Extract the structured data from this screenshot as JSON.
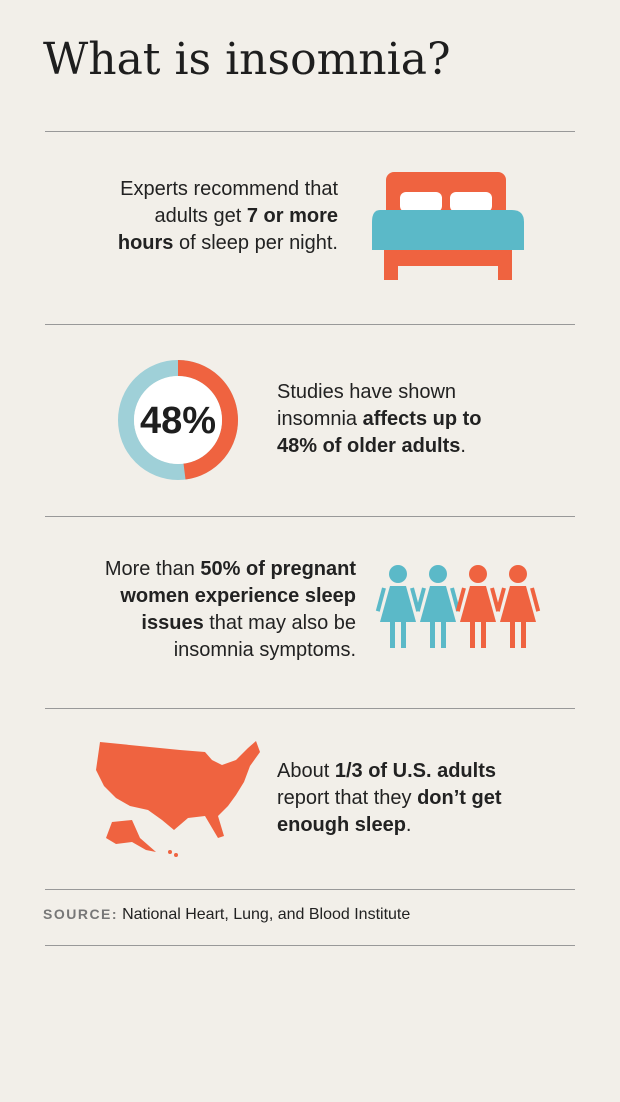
{
  "title": "What is insomnia?",
  "sections": [
    {
      "lines": [
        [
          {
            "text": "Experts recommend that",
            "bold": false
          }
        ],
        [
          {
            "text": "adults get ",
            "bold": false
          },
          {
            "text": "7 or more",
            "bold": true
          }
        ],
        [
          {
            "text": "hours",
            "bold": true
          },
          {
            "text": " of sleep per night.",
            "bold": false
          }
        ]
      ]
    },
    {
      "donut": {
        "values": [
          48
        ],
        "value_labels": [
          "48%"
        ],
        "colors": [
          "#ef6340",
          "#9fd0d8"
        ]
      },
      "lines": [
        [
          {
            "text": "Studies have shown",
            "bold": false
          }
        ],
        [
          {
            "text": "insomnia ",
            "bold": false
          },
          {
            "text": "affects up to",
            "bold": true
          }
        ],
        [
          {
            "text": "48% of older adults",
            "bold": true
          },
          {
            "text": ".",
            "bold": false
          }
        ]
      ]
    },
    {
      "lines": [
        [
          {
            "text": "More than ",
            "bold": false
          },
          {
            "text": "50% of pregnant",
            "bold": true
          }
        ],
        [
          {
            "text": "women experience sleep",
            "bold": true
          }
        ],
        [
          {
            "text": "issues",
            "bold": true
          },
          {
            "text": " that may also be",
            "bold": false
          }
        ],
        [
          {
            "text": "insomnia symptoms.",
            "bold": false
          }
        ]
      ]
    },
    {
      "lines": [
        [
          {
            "text": "About ",
            "bold": false
          },
          {
            "text": "1/3 of U.S. adults",
            "bold": true
          }
        ],
        [
          {
            "text": "report that they ",
            "bold": false
          },
          {
            "text": "don’t get",
            "bold": true
          }
        ],
        [
          {
            "text": "enough sleep",
            "bold": true
          },
          {
            "text": ".",
            "bold": false
          }
        ]
      ]
    }
  ],
  "source": {
    "label": "SOURCE:",
    "text": "National Heart, Lung, and Blood Institute"
  }
}
